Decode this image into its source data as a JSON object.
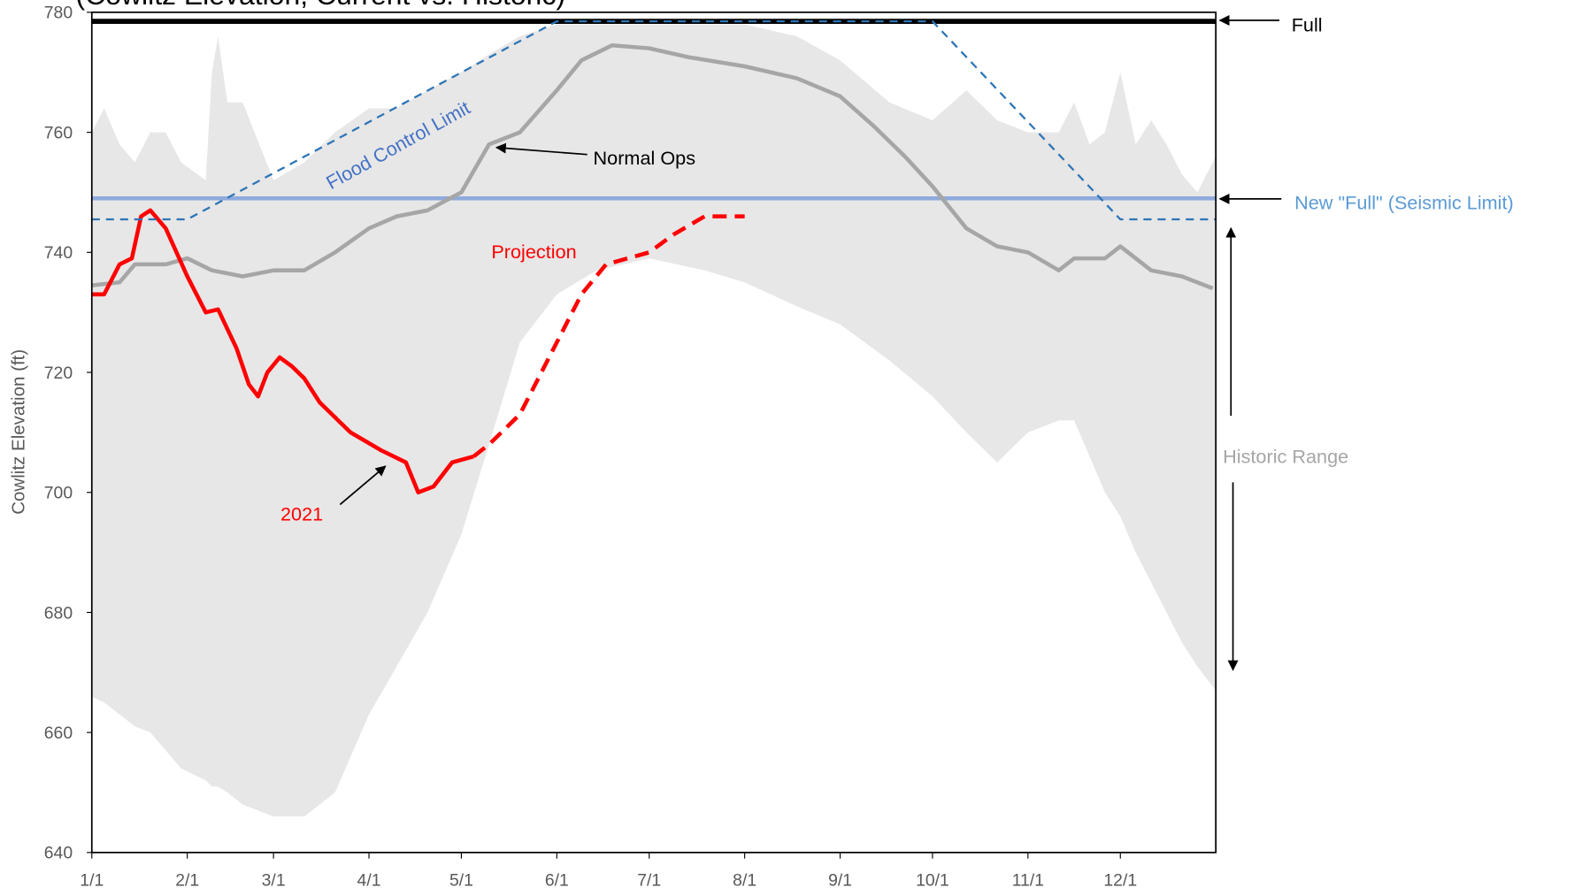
{
  "chart_data": {
    "type": "line",
    "title": "(Cowlitz Elevation, Current vs. Historic)",
    "y_axis_label": "Cowlitz Elevation (ft)",
    "xlim": [
      1,
      366
    ],
    "ylim": [
      640,
      780
    ],
    "yticks": [
      640,
      660,
      680,
      700,
      720,
      740,
      760,
      780
    ],
    "xticks": [
      {
        "value": 1,
        "label": "1/1"
      },
      {
        "value": 32,
        "label": "2/1"
      },
      {
        "value": 60,
        "label": "3/1"
      },
      {
        "value": 91,
        "label": "4/1"
      },
      {
        "value": 121,
        "label": "5/1"
      },
      {
        "value": 152,
        "label": "6/1"
      },
      {
        "value": 182,
        "label": "7/1"
      },
      {
        "value": 213,
        "label": "8/1"
      },
      {
        "value": 244,
        "label": "9/1"
      },
      {
        "value": 274,
        "label": "10/1"
      },
      {
        "value": 305,
        "label": "11/1"
      },
      {
        "value": 335,
        "label": "12/1"
      }
    ],
    "grid": false,
    "historic_range": {
      "name": "Historic Range",
      "color": "#e7e7e7",
      "x": [
        1,
        5,
        10,
        15,
        20,
        25,
        30,
        38,
        40,
        42,
        45,
        50,
        60,
        70,
        80,
        91,
        100,
        110,
        121,
        130,
        140,
        152,
        165,
        182,
        200,
        213,
        230,
        244,
        260,
        274,
        285,
        295,
        305,
        315,
        320,
        325,
        330,
        335,
        340,
        345,
        350,
        355,
        360,
        366
      ],
      "upper": [
        760,
        764,
        758,
        755,
        760,
        760,
        755,
        752,
        770,
        776,
        765,
        765,
        752,
        755,
        760,
        764,
        764,
        767,
        770,
        773,
        776,
        778,
        778,
        778,
        778,
        778,
        776,
        772,
        765,
        762,
        767,
        762,
        760,
        760,
        765,
        758,
        760,
        770,
        758,
        762,
        758,
        753,
        750,
        756
      ],
      "lower": [
        666,
        665,
        663,
        661,
        660,
        657,
        654,
        652,
        651,
        651,
        650,
        648,
        646,
        646,
        650,
        663,
        671,
        680,
        693,
        708,
        725,
        733,
        737,
        739,
        737,
        735,
        731,
        728,
        722,
        716,
        710,
        705,
        710,
        712,
        712,
        706,
        700,
        696,
        690,
        685,
        680,
        675,
        671,
        667
      ]
    },
    "series": [
      {
        "name": "Normal Ops",
        "color": "#a6a6a6",
        "dashed": false,
        "x": [
          1,
          10,
          15,
          25,
          32,
          40,
          50,
          60,
          70,
          80,
          91,
          100,
          110,
          121,
          130,
          140,
          152,
          160,
          170,
          182,
          195,
          213,
          230,
          244,
          255,
          265,
          274,
          285,
          295,
          305,
          315,
          320,
          330,
          335,
          345,
          355,
          365
        ],
        "values": [
          734.5,
          735,
          738,
          738,
          739,
          737,
          736,
          737,
          737,
          740,
          744,
          746,
          747,
          750,
          758,
          760,
          767,
          772,
          774.5,
          774,
          772.5,
          771,
          769,
          766,
          761,
          756,
          751,
          744,
          741,
          740,
          737,
          739,
          739,
          741,
          737,
          736,
          734
        ]
      },
      {
        "name": "2021",
        "color": "#ff0000",
        "dashed": false,
        "x": [
          1,
          5,
          10,
          14,
          17,
          20,
          25,
          32,
          38,
          42,
          48,
          52,
          55,
          58,
          62,
          66,
          70,
          75,
          85,
          95,
          103,
          107,
          112,
          118,
          125
        ],
        "values": [
          733,
          733,
          738,
          739,
          746,
          747,
          744,
          736,
          730,
          730.5,
          724,
          718,
          716,
          720,
          722.5,
          721,
          719,
          715,
          710,
          707,
          705,
          700,
          701,
          705,
          706
        ]
      },
      {
        "name": "Projection",
        "color": "#ff0000",
        "dashed": true,
        "x": [
          125,
          130,
          140,
          150,
          160,
          168,
          175,
          182,
          190,
          200,
          213
        ],
        "values": [
          706,
          708,
          713,
          723,
          733,
          738,
          739,
          740,
          743,
          746,
          746
        ]
      },
      {
        "name": "Flood Control Limit",
        "color": "#2e75b6",
        "dashed": true,
        "x": [
          1,
          32,
          152,
          274,
          335,
          366
        ],
        "values": [
          745.5,
          745.5,
          778.5,
          778.5,
          745.5,
          745.5
        ]
      }
    ],
    "reference_lines": [
      {
        "name": "Full",
        "color": "#000000",
        "value": 778.5
      },
      {
        "name": "New \"Full\" (Seismic Limit)",
        "color": "#8faadc",
        "value": 749
      }
    ]
  }
}
